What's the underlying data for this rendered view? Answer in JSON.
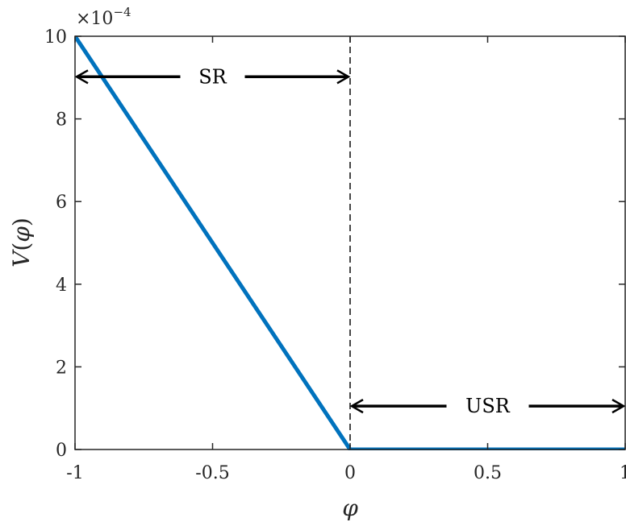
{
  "chart_data": {
    "type": "line",
    "title": "",
    "xlabel": "φ",
    "ylabel": "V(φ)",
    "ylabel_func": "V",
    "ylabel_open": "(",
    "ylabel_var": "φ",
    "ylabel_close": ")",
    "xlim": [
      -1,
      1
    ],
    "ylim": [
      0,
      10
    ],
    "y_exponent_base": "×10",
    "y_exponent_power": "−4",
    "x_ticks": [
      -1,
      -0.5,
      0,
      0.5,
      1
    ],
    "x_tick_labels": [
      "-1",
      "-0.5",
      "0",
      "0.5",
      "1"
    ],
    "y_ticks": [
      0,
      2,
      4,
      6,
      8,
      10
    ],
    "y_tick_labels": [
      "0",
      "2",
      "4",
      "6",
      "8",
      "10"
    ],
    "grid": false,
    "series": [
      {
        "color": "#0072BD",
        "x": [
          -1,
          0,
          1
        ],
        "y": [
          10,
          0,
          0
        ]
      }
    ],
    "vline": {
      "x": 0,
      "style": "dashed",
      "color": "#333333"
    },
    "annotations": [
      {
        "text": "SR",
        "x_from": -1,
        "x_to": 0,
        "y": 9.02
      },
      {
        "text": "USR",
        "x_from": 0,
        "x_to": 1,
        "y": 1.05
      }
    ]
  }
}
